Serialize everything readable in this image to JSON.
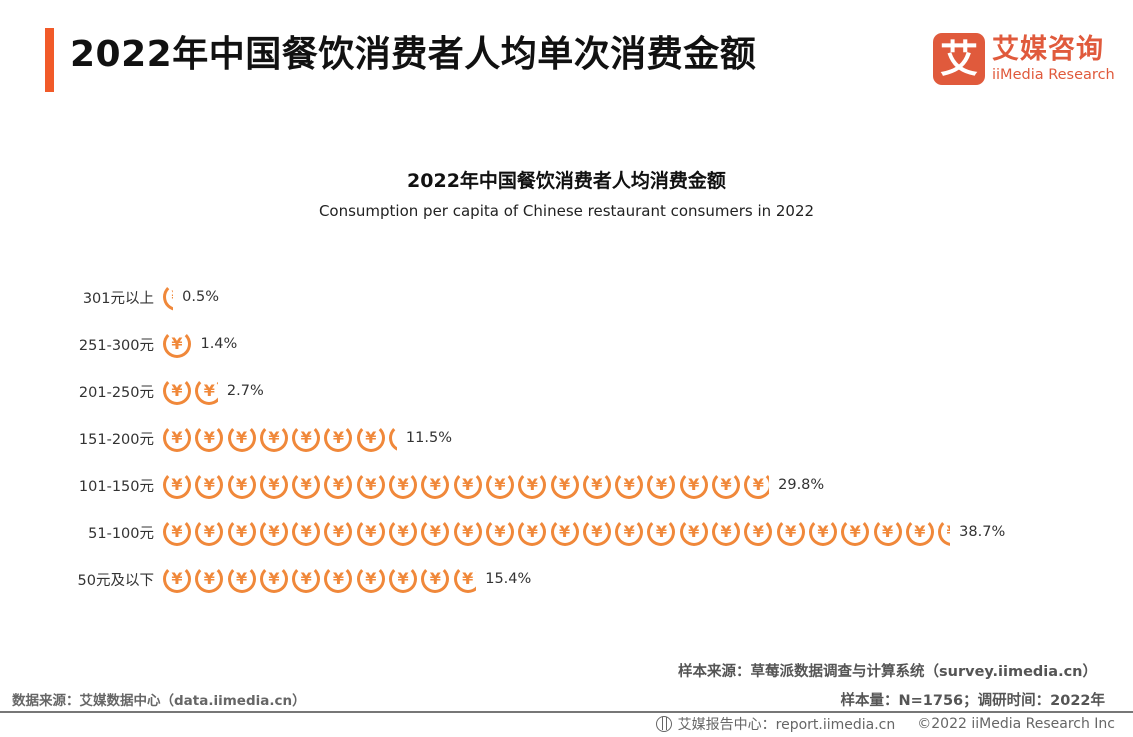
{
  "header": {
    "title": "2022年中国餐饮消费者人均单次消费金额",
    "accent_color": "#f15a29"
  },
  "logo": {
    "mark": "艾",
    "cn": "艾媒咨询",
    "en": "iiMedia Research",
    "color": "#e05a3c"
  },
  "chart_data": {
    "type": "bar",
    "orientation": "horizontal",
    "style": "pictogram (yuan coin icons)",
    "title": "2022年中国餐饮消费者人均消费金额",
    "subtitle": "Consumption per capita of Chinese restaurant consumers in 2022",
    "categories": [
      "301元以上",
      "251-300元",
      "201-250元",
      "151-200元",
      "101-150元",
      "51-100元",
      "50元及以下"
    ],
    "values": [
      0.5,
      1.4,
      2.7,
      11.5,
      29.8,
      38.7,
      15.4
    ],
    "value_labels": [
      "0.5%",
      "1.4%",
      "2.7%",
      "11.5%",
      "29.8%",
      "38.7%",
      "15.4%"
    ],
    "unit": "%",
    "xlabel": "",
    "ylabel": "",
    "grid": false,
    "legend": "none",
    "icon_color": "#f0883a",
    "icon": "yuan-coin-icon",
    "icon_glyph": "¥"
  },
  "sources": {
    "sample_source": "样本来源：草莓派数据调查与计算系统（survey.iimedia.cn）",
    "sample_info": "样本量：N=1756；调研时间：2022年",
    "data_source": "数据来源：艾媒数据中心（data.iimedia.cn）"
  },
  "footer": {
    "report_center": "艾媒报告中心：report.iimedia.cn",
    "copyright": "©2022  iiMedia Research  Inc"
  }
}
